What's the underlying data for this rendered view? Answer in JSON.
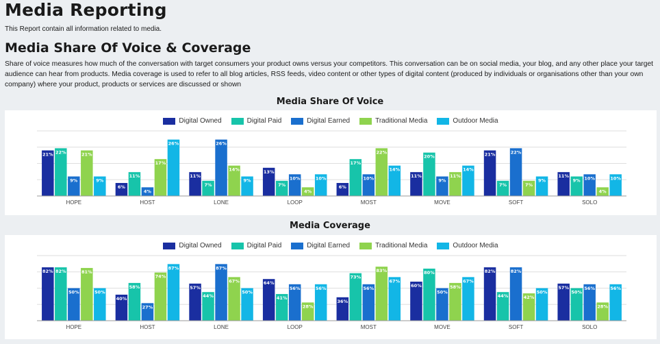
{
  "header": {
    "title": "Media Reporting",
    "subtitle": "This Report contain all information related to media."
  },
  "section": {
    "title": "Media Share Of Voice & Coverage",
    "description": "Share of voice measures how much of the conversation with target consumers your product owns versus your competitors. This conversation can be on social media, your blog, and any other place your target audience can hear from products. Media coverage is used to refer to all blog articles, RSS feeds, video content or other types of digital content (produced by individuals or organisations other than your own company) where your product, products or services are discussed or shown"
  },
  "colors": {
    "Digital Owned": "#1a2ea0",
    "Digital Paid": "#17c4aa",
    "Digital Earned": "#1a6fce",
    "Traditional Media": "#8fd34e",
    "Outdoor Media": "#12b6e6"
  },
  "chart_data": [
    {
      "type": "bar",
      "title": "Media Share Of Voice",
      "categories": [
        "HOPE",
        "HOST",
        "LONE",
        "LOOP",
        "MOST",
        "MOVE",
        "SOFT",
        "SOLO"
      ],
      "unit": "%",
      "ylim": [
        0,
        30
      ],
      "grid": true,
      "legend": "top-center",
      "series": [
        {
          "name": "Digital Owned",
          "values": [
            21,
            6,
            11,
            13,
            6,
            11,
            21,
            11
          ]
        },
        {
          "name": "Digital Paid",
          "values": [
            22,
            11,
            7,
            7,
            17,
            20,
            7,
            9
          ]
        },
        {
          "name": "Digital Earned",
          "values": [
            9,
            4,
            26,
            10,
            10,
            9,
            22,
            10
          ]
        },
        {
          "name": "Traditional Media",
          "values": [
            21,
            17,
            14,
            4,
            22,
            11,
            7,
            4
          ]
        },
        {
          "name": "Outdoor Media",
          "values": [
            9,
            26,
            9,
            10,
            14,
            14,
            9,
            10
          ]
        }
      ]
    },
    {
      "type": "bar",
      "title": "Media Coverage",
      "categories": [
        "HOPE",
        "HOST",
        "LONE",
        "LOOP",
        "MOST",
        "MOVE",
        "SOFT",
        "SOLO"
      ],
      "unit": "%",
      "ylim": [
        0,
        100
      ],
      "grid": true,
      "legend": "top-center",
      "series": [
        {
          "name": "Digital Owned",
          "values": [
            82,
            40,
            57,
            64,
            36,
            60,
            82,
            57
          ]
        },
        {
          "name": "Digital Paid",
          "values": [
            82,
            58,
            44,
            41,
            73,
            80,
            44,
            50
          ]
        },
        {
          "name": "Digital Earned",
          "values": [
            50,
            27,
            87,
            56,
            56,
            50,
            82,
            56
          ]
        },
        {
          "name": "Traditional Media",
          "values": [
            81,
            74,
            67,
            28,
            83,
            58,
            42,
            28
          ]
        },
        {
          "name": "Outdoor Media",
          "values": [
            50,
            87,
            50,
            56,
            67,
            67,
            50,
            56
          ]
        }
      ]
    }
  ]
}
